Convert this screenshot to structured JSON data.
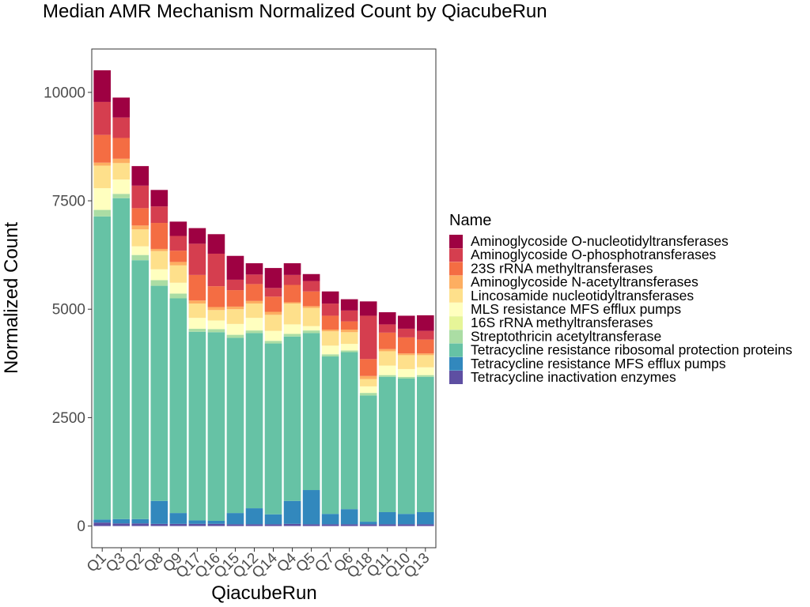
{
  "chart_data": {
    "type": "bar",
    "stacked": true,
    "title": "Median AMR Mechanism Normalized Count by QiacubeRun",
    "xlabel": "QiacubeRun",
    "ylabel": "Normalized Count",
    "ylim": [
      -500,
      11000
    ],
    "yticks": [
      0,
      2500,
      5000,
      7500,
      10000
    ],
    "grid": false,
    "legend_title": "Name",
    "legend_position": "right",
    "categories": [
      "Q1",
      "Q3",
      "Q2",
      "Q8",
      "Q9",
      "Q17",
      "Q16",
      "Q15",
      "Q12",
      "Q14",
      "Q4",
      "Q5",
      "Q7",
      "Q6",
      "Q18",
      "Q11",
      "Q10",
      "Q13"
    ],
    "series": [
      {
        "name": "Tetracycline inactivation enzymes",
        "color": "#5E4FA2",
        "values": [
          80,
          60,
          60,
          50,
          50,
          50,
          50,
          40,
          40,
          40,
          50,
          40,
          40,
          40,
          40,
          40,
          40,
          40
        ]
      },
      {
        "name": "Tetracycline resistance MFS efflux pumps",
        "color": "#3288BD",
        "values": [
          70,
          100,
          100,
          530,
          250,
          80,
          70,
          260,
          370,
          230,
          530,
          790,
          240,
          350,
          60,
          280,
          240,
          280
        ]
      },
      {
        "name": "Tetracycline resistance ribosomal protection proteins",
        "color": "#66C2A5",
        "values": [
          6990,
          7400,
          5970,
          4960,
          4950,
          4350,
          4350,
          4040,
          4040,
          3940,
          3790,
          3620,
          3630,
          3620,
          2910,
          3120,
          3120,
          3120
        ]
      },
      {
        "name": "Streptothricin acetyltransferase",
        "color": "#ABDDA4",
        "values": [
          150,
          100,
          120,
          130,
          110,
          70,
          70,
          70,
          60,
          60,
          60,
          60,
          50,
          40,
          60,
          40,
          40,
          40
        ]
      },
      {
        "name": "16S rRNA methyltransferases",
        "color": "#E6F598",
        "values": [
          0,
          0,
          0,
          0,
          0,
          0,
          0,
          0,
          0,
          0,
          0,
          0,
          0,
          0,
          0,
          0,
          0,
          0
        ]
      },
      {
        "name": "MLS resistance MFS efflux pumps",
        "color": "#FFFFBF",
        "values": [
          500,
          330,
          200,
          250,
          250,
          250,
          200,
          250,
          290,
          230,
          220,
          100,
          200,
          150,
          150,
          220,
          180,
          180
        ]
      },
      {
        "name": "Lincosamide nucleotidyltransferases",
        "color": "#FEE08B",
        "values": [
          520,
          380,
          390,
          420,
          400,
          330,
          240,
          340,
          330,
          370,
          480,
          420,
          330,
          270,
          170,
          330,
          320,
          280
        ]
      },
      {
        "name": "Aminoglycoside N-acetyltransferases",
        "color": "#FDAE61",
        "values": [
          70,
          100,
          90,
          50,
          80,
          70,
          70,
          60,
          60,
          70,
          30,
          40,
          40,
          60,
          70,
          50,
          40,
          40
        ]
      },
      {
        "name": "23S rRNA methyltransferases",
        "color": "#F46D43",
        "values": [
          640,
          480,
          400,
          600,
          260,
          590,
          480,
          380,
          390,
          350,
          400,
          340,
          320,
          190,
          390,
          380,
          370,
          320
        ]
      },
      {
        "name": "Aminoglycoside O-phosphotransferases",
        "color": "#D53E4F",
        "values": [
          760,
          470,
          520,
          380,
          340,
          720,
          750,
          240,
          220,
          200,
          230,
          240,
          280,
          250,
          1000,
          190,
          200,
          200
        ]
      },
      {
        "name": "Aminoglycoside O-nucleotidyltransferases",
        "color": "#9E0142",
        "values": [
          730,
          460,
          450,
          380,
          330,
          360,
          450,
          550,
          260,
          460,
          270,
          160,
          280,
          260,
          330,
          280,
          300,
          360
        ]
      }
    ],
    "legend_order": [
      "Aminoglycoside O-nucleotidyltransferases",
      "Aminoglycoside O-phosphotransferases",
      "23S rRNA methyltransferases",
      "Aminoglycoside N-acetyltransferases",
      "Lincosamide nucleotidyltransferases",
      "MLS resistance MFS efflux pumps",
      "16S rRNA methyltransferases",
      "Streptothricin acetyltransferase",
      "Tetracycline resistance ribosomal protection proteins",
      "Tetracycline resistance MFS efflux pumps",
      "Tetracycline inactivation enzymes"
    ]
  }
}
